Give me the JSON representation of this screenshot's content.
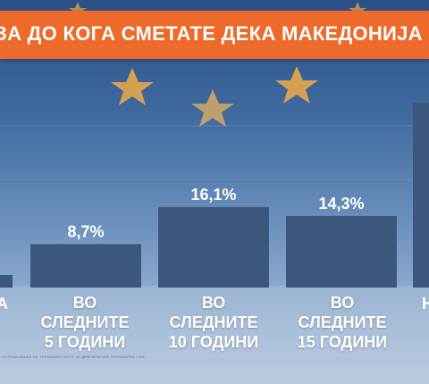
{
  "title": "ЗА ДО КОГА СМЕТАТЕ ДЕКА МАКЕДОНИЈА КЕ СТАНЕ ЧЛЕНКА",
  "source_note": "ИСТРАЖУВАЊЕ НА ТЕЛМА/ИНСТИТУТ ЗА ДЕМОКРАТИЈА ПРЕМИОРКА 1,5%",
  "colors": {
    "bar": "#3c577c",
    "title_band": "#ee6a2a",
    "star": "#e8a64a",
    "text": "#ffffff"
  },
  "chart_data": {
    "type": "bar",
    "title": "",
    "categories": [
      "ВО СЛЕДНИТЕ\n5 ГОДИНИ",
      "ВО СЛЕДНИТЕ\n10 ГОДИНИ",
      "ВО СЛЕДНИТЕ\n15 ГОДИНИ"
    ],
    "values": [
      8.7,
      16.1,
      14.3
    ],
    "value_labels": [
      "8,7%",
      "16,1%",
      "14,3%"
    ],
    "partial_left": {
      "value": 2.5,
      "label_fragment": "А"
    },
    "partial_right": {
      "value": 37.0,
      "label_fragment": "Н"
    },
    "ylim": [
      0,
      40
    ],
    "xlabel": "",
    "ylabel": "",
    "grid": false
  }
}
